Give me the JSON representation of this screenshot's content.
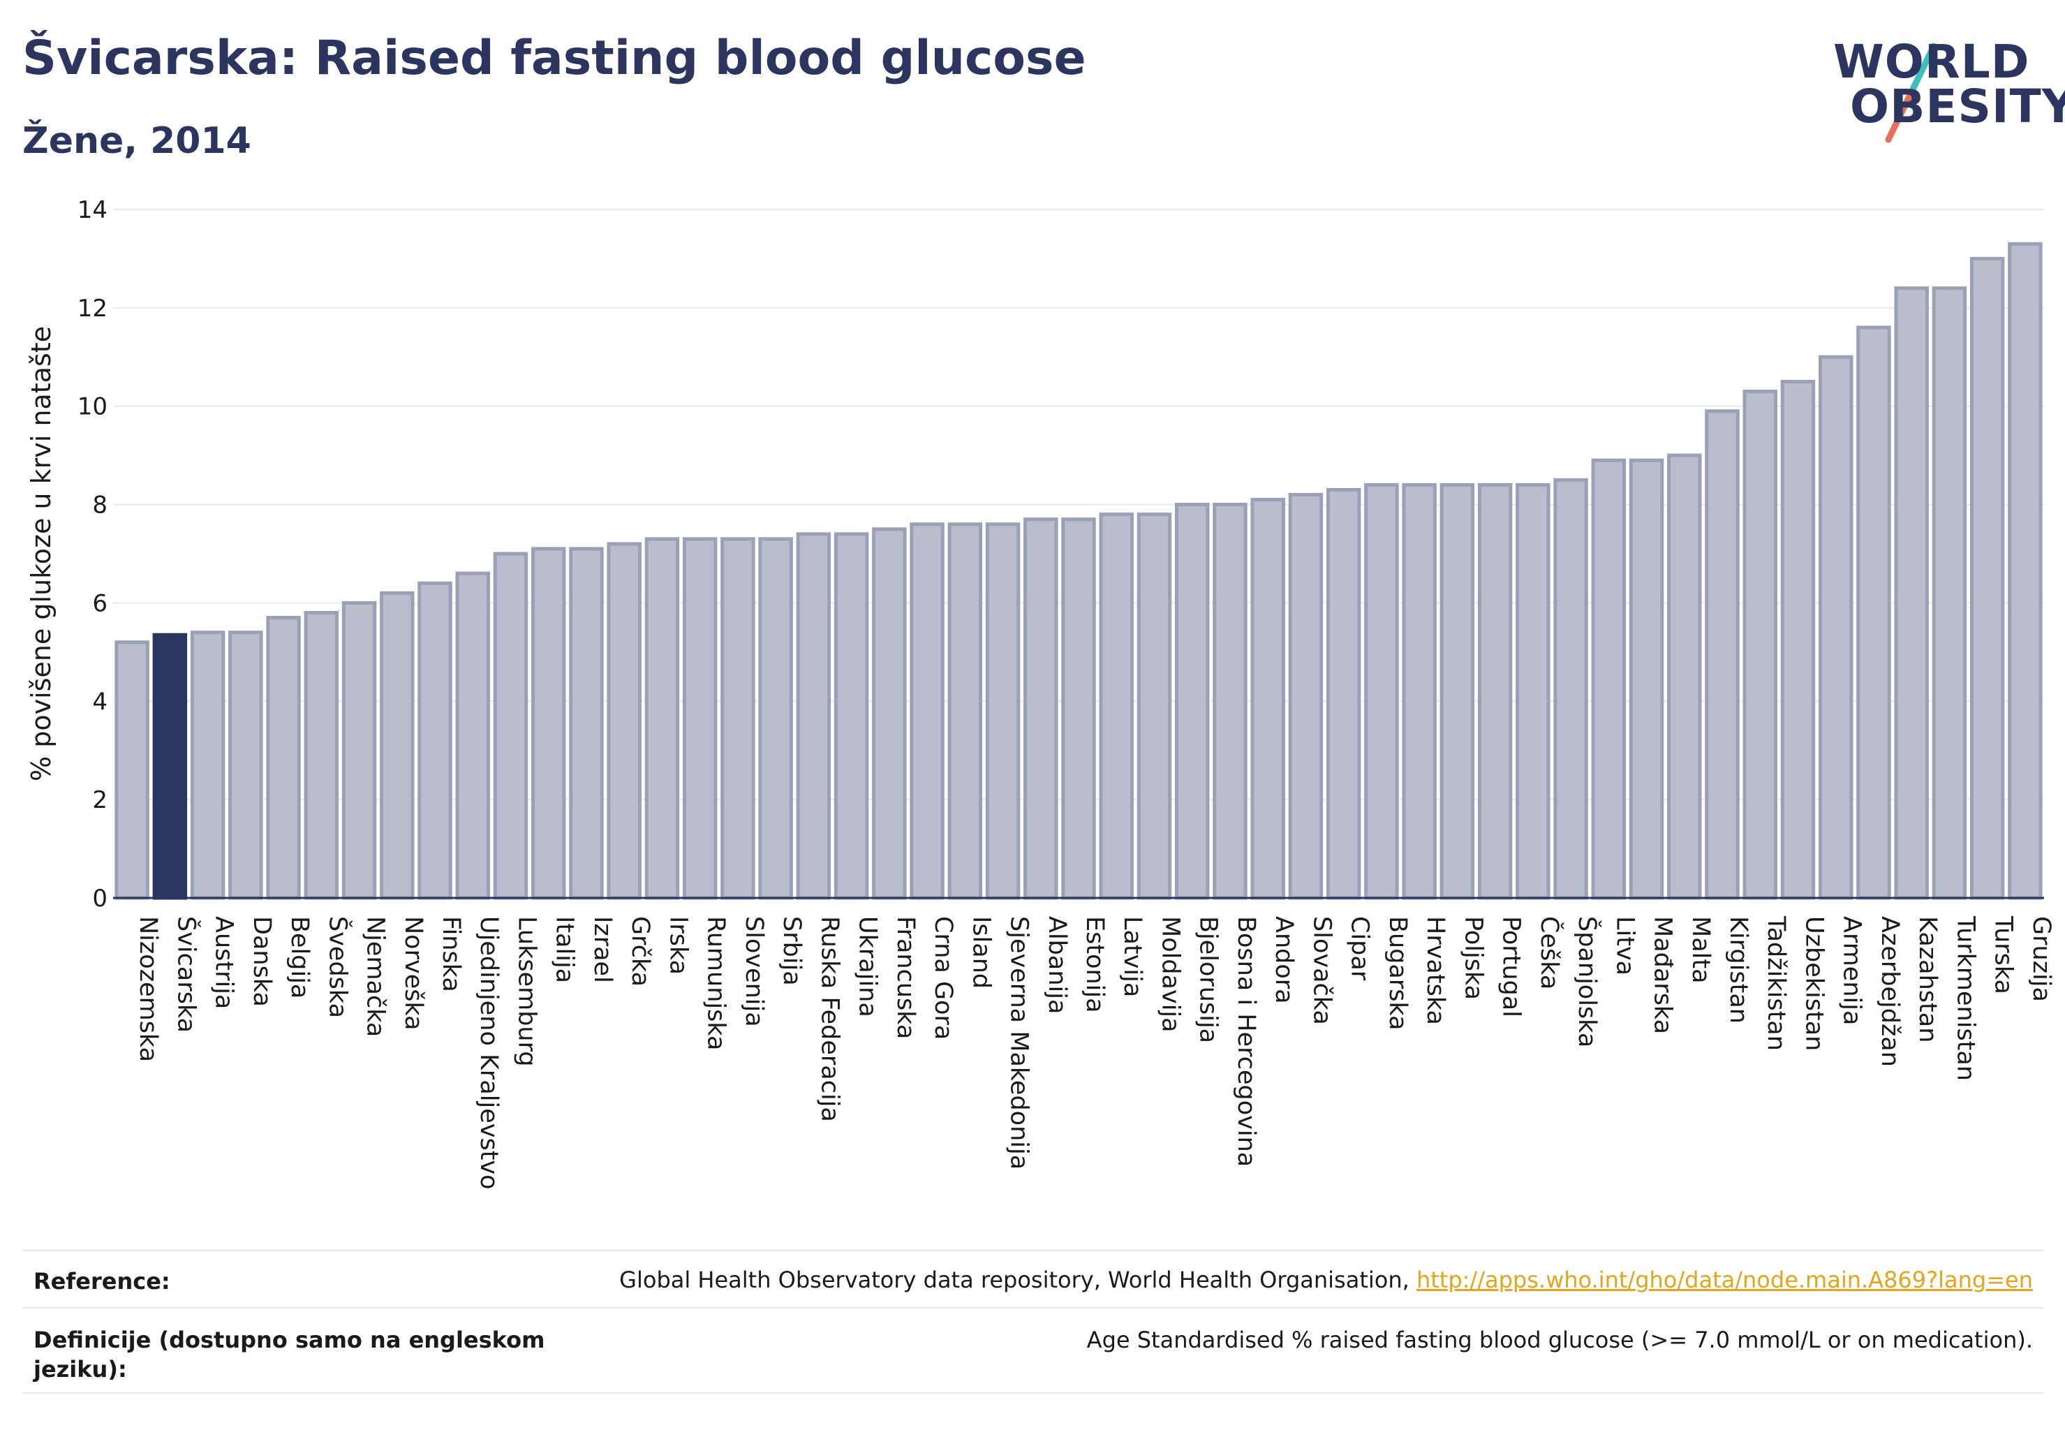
{
  "header": {
    "title": "Švicarska: Raised fasting blood glucose",
    "subtitle": "Žene, 2014"
  },
  "logo": {
    "line1": "WORLD",
    "line2": "OBESITY"
  },
  "colors": {
    "highlight": "#2b355f",
    "bar": "#b9bdcc",
    "bar_border": "#9aa0b6",
    "text": "#2b355f"
  },
  "chart_data": {
    "type": "bar",
    "ylabel": "% povišene glukoze u krvi natašte",
    "ylim": [
      0,
      14
    ],
    "yticks": [
      0,
      2,
      4,
      6,
      8,
      10,
      12,
      14
    ],
    "grid": true,
    "highlight": "Švicarska",
    "categories": [
      "Nizozemska",
      "Švicarska",
      "Austrija",
      "Danska",
      "Belgija",
      "Švedska",
      "Njemačka",
      "Norveška",
      "Finska",
      "Ujedinjeno Kraljevstvo",
      "Luksemburg",
      "Italija",
      "Izrael",
      "Grčka",
      "Irska",
      "Rumunjska",
      "Slovenija",
      "Srbija",
      "Ruska Federacija",
      "Ukrajina",
      "Francuska",
      "Crna Gora",
      "Island",
      "Sjeverna Makedonija",
      "Albanija",
      "Estonija",
      "Latvija",
      "Moldavija",
      "Bjelorusija",
      "Bosna i Hercegovina",
      "Andora",
      "Slovačka",
      "Cipar",
      "Bugarska",
      "Hrvatska",
      "Poljska",
      "Portugal",
      "Češka",
      "Španjolska",
      "Litva",
      "Mađarska",
      "Malta",
      "Kirgistan",
      "Tadžikistan",
      "Uzbekistan",
      "Armenija",
      "Azerbejdžan",
      "Kazahstan",
      "Turkmenistan",
      "Turska",
      "Gruzija"
    ],
    "values": [
      5.2,
      5.35,
      5.4,
      5.4,
      5.7,
      5.8,
      6.0,
      6.2,
      6.4,
      6.6,
      7.0,
      7.1,
      7.1,
      7.2,
      7.3,
      7.3,
      7.3,
      7.3,
      7.4,
      7.4,
      7.5,
      7.6,
      7.6,
      7.6,
      7.7,
      7.7,
      7.8,
      7.8,
      8.0,
      8.0,
      8.1,
      8.2,
      8.3,
      8.4,
      8.4,
      8.4,
      8.4,
      8.4,
      8.5,
      8.9,
      8.9,
      9.0,
      9.9,
      10.3,
      10.5,
      11.0,
      11.6,
      12.4,
      12.4,
      13.0,
      13.3
    ]
  },
  "footer": {
    "reference_label": "Reference:",
    "reference_text": "Global Health Observatory data repository, World Health Organisation,",
    "reference_link": "http://apps.who.int/gho/data/node.main.A869?lang=en",
    "definition_label": "Definicije (dostupno samo na engleskom jeziku):",
    "definition_text": "Age Standardised % raised fasting blood glucose (>= 7.0 mmol/L or on medication)."
  }
}
